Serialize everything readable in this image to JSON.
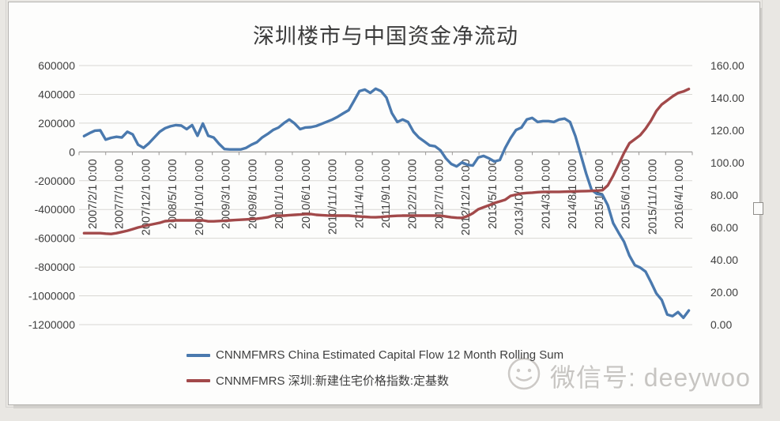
{
  "title": "深圳楼市与中国资金净流动",
  "watermark": {
    "icon": "smiley-face",
    "text": "微信号: deeywoo"
  },
  "legend": {
    "items": [
      {
        "label": "CNNMFMRS China Estimated Capital Flow 12 Month Rolling Sum",
        "color": "#4a79ae"
      },
      {
        "label": "CNNMFMRS 深圳:新建住宅价格指数:定基数",
        "color": "#a2494a"
      }
    ]
  },
  "axes": {
    "left_ticks": [
      "600000",
      "400000",
      "200000",
      "0",
      "-200000",
      "-400000",
      "-600000",
      "-800000",
      "-1000000",
      "-1200000"
    ],
    "right_ticks": [
      "160.00",
      "140.00",
      "120.00",
      "100.00",
      "80.00",
      "60.00",
      "40.00",
      "20.00",
      "0.00"
    ]
  },
  "chart_data": {
    "type": "line",
    "title": "深圳楼市与中国资金净流动",
    "x_start": "2007/2",
    "x_end": "2016/6",
    "interval": "monthly",
    "x_tick_labels": [
      "2007/2/1 0:00",
      "2007/7/1 0:00",
      "2007/12/1 0:00",
      "2008/5/1 0:00",
      "2008/10/1 0:00",
      "2009/3/1 0:00",
      "2009/8/1 0:00",
      "2010/1/1 0:00",
      "2010/6/1 0:00",
      "2010/11/1 0:00",
      "2011/4/1 0:00",
      "2011/9/1 0:00",
      "2012/2/1 0:00",
      "2012/7/1 0:00",
      "2012/12/1 0:00",
      "2013/5/1 0:00",
      "2013/10/1 0:00",
      "2014/3/1 0:00",
      "2014/8/1 0:00",
      "2015/1/1 0:00",
      "2015/6/1 0:00",
      "2015/11/1 0:00",
      "2016/4/1 0:00"
    ],
    "left_axis": {
      "min": -1200000,
      "max": 600000,
      "step": 200000
    },
    "right_axis": {
      "min": 0,
      "max": 160,
      "step": 20
    },
    "grid": "horizontal",
    "legend_position": "bottom",
    "colors": {
      "grid": "#d9d7d3",
      "axis": "#9a9896",
      "text": "#3f3f3f"
    },
    "series": [
      {
        "name": "CNNMFMRS China Estimated Capital Flow 12 Month Rolling Sum",
        "axis": "left",
        "color": "#4a79ae",
        "values": [
          110000,
          130000,
          148000,
          150000,
          85000,
          98000,
          105000,
          100000,
          140000,
          122000,
          50000,
          28000,
          60000,
          100000,
          140000,
          165000,
          178000,
          186000,
          183000,
          158000,
          186000,
          112000,
          197000,
          112000,
          100000,
          56000,
          20000,
          17000,
          17000,
          17000,
          28000,
          50000,
          67000,
          101000,
          125000,
          152000,
          169000,
          200000,
          225000,
          197000,
          158000,
          170000,
          172000,
          180000,
          195000,
          210000,
          225000,
          245000,
          268000,
          290000,
          355000,
          422000,
          433000,
          410000,
          439000,
          422000,
          377000,
          270000,
          208000,
          225000,
          208000,
          140000,
          100000,
          73000,
          45000,
          39000,
          11000,
          -45000,
          -84000,
          -101000,
          -73000,
          -90000,
          -95000,
          -39000,
          -28000,
          -45000,
          -67000,
          -56000,
          28000,
          96000,
          152000,
          169000,
          225000,
          236000,
          208000,
          214000,
          214000,
          208000,
          225000,
          231000,
          208000,
          110000,
          -20000,
          -152000,
          -264000,
          -292000,
          -298000,
          -371000,
          -495000,
          -562000,
          -624000,
          -720000,
          -787000,
          -804000,
          -832000,
          -906000,
          -984000,
          -1029000,
          -1130000,
          -1141000,
          -1113000,
          -1152000,
          -1102000
        ]
      },
      {
        "name": "CNNMFMRS 深圳:新建住宅价格指数:定基数",
        "axis": "right",
        "color": "#a2494a",
        "values": [
          56.5,
          56.5,
          56.5,
          56.5,
          56.2,
          56.0,
          56.5,
          57.2,
          58.0,
          59.0,
          60.0,
          60.8,
          61.5,
          62.2,
          62.9,
          63.9,
          64.2,
          64.4,
          64.4,
          64.4,
          64.4,
          64.4,
          64.4,
          63.8,
          63.8,
          64.0,
          64.2,
          64.4,
          64.6,
          64.8,
          65.0,
          65.2,
          65.4,
          65.8,
          66.3,
          67.3,
          67.3,
          67.3,
          67.6,
          67.8,
          68.0,
          68.3,
          68.3,
          67.8,
          67.6,
          67.4,
          67.3,
          67.3,
          67.3,
          67.3,
          67.0,
          66.8,
          66.6,
          66.4,
          66.3,
          66.5,
          66.8,
          67.0,
          67.2,
          67.3,
          67.3,
          67.3,
          67.3,
          67.3,
          67.3,
          67.3,
          67.3,
          66.8,
          66.3,
          66.0,
          65.9,
          67.0,
          68.8,
          71.2,
          72.5,
          73.7,
          75.1,
          76.1,
          77.1,
          79.5,
          80.3,
          81.0,
          81.3,
          81.5,
          81.8,
          82.0,
          82.0,
          82.0,
          82.0,
          82.1,
          82.2,
          82.3,
          82.4,
          82.5,
          82.6,
          82.8,
          83.0,
          86.0,
          92.0,
          99.0,
          106.0,
          112.0,
          114.5,
          117.0,
          121.0,
          126.0,
          132.0,
          136.0,
          138.5,
          141.0,
          143.0,
          144.0,
          145.5
        ]
      }
    ]
  }
}
